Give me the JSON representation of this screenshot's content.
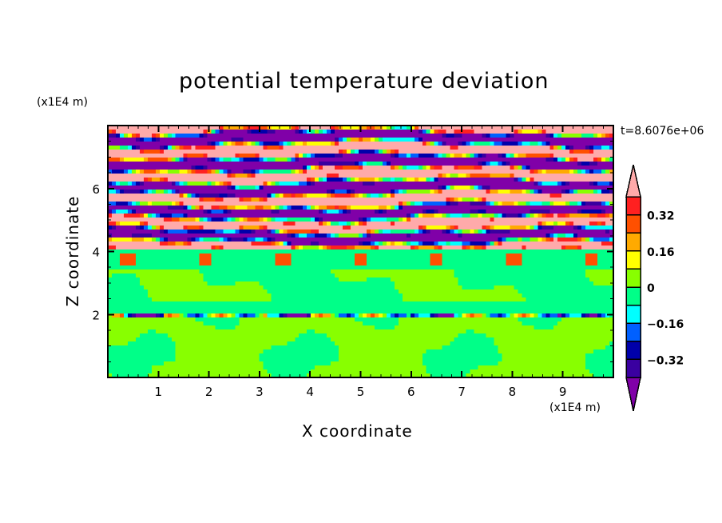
{
  "chart_data": {
    "type": "heatmap",
    "title": "potential temperature deviation",
    "xlabel": "X coordinate",
    "ylabel": "Z coordinate",
    "x_unit": "(x1E4 m)",
    "y_unit": "(x1E4 m)",
    "time_label": "t=8.6076e+06",
    "xlim": [
      0,
      10
    ],
    "ylim": [
      0,
      8
    ],
    "x_ticks": [
      "1",
      "2",
      "3",
      "4",
      "5",
      "6",
      "7",
      "8",
      "9"
    ],
    "y_ticks": [
      "2",
      "4",
      "6"
    ],
    "colorbar": {
      "levels": [
        -0.4,
        -0.32,
        -0.24,
        -0.16,
        -0.08,
        0,
        0.08,
        0.16,
        0.24,
        0.32,
        0.4
      ],
      "tick_labels": [
        "0.32",
        "0.16",
        "0",
        "−0.16",
        "−0.32"
      ],
      "tick_values": [
        0.32,
        0.16,
        0,
        -0.16,
        -0.32
      ],
      "colors": [
        "#8000a8",
        "#3a00a0",
        "#0000aa",
        "#0060ff",
        "#00ffff",
        "#00ff88",
        "#88ff00",
        "#ffff00",
        "#ffaa00",
        "#ff5000",
        "#ff2020",
        "#ffaaaa"
      ]
    },
    "description_regions": {
      "upper_layer_z_above": 4.1,
      "upper_layer_values": [
        -0.5,
        0.5
      ],
      "lower_layer_values": [
        -0.04,
        0.04
      ]
    }
  }
}
